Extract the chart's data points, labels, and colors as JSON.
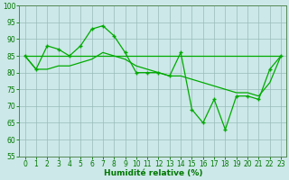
{
  "x": [
    0,
    1,
    2,
    3,
    4,
    5,
    6,
    7,
    8,
    9,
    10,
    11,
    12,
    13,
    14,
    15,
    16,
    17,
    18,
    19,
    20,
    21,
    22,
    23
  ],
  "line_jagged": [
    85,
    81,
    88,
    87,
    85,
    88,
    93,
    94,
    91,
    86,
    80,
    80,
    80,
    79,
    86,
    69,
    65,
    72,
    63,
    73,
    73,
    72,
    81,
    85
  ],
  "line_smooth": [
    85,
    81,
    81,
    82,
    82,
    83,
    84,
    86,
    85,
    84,
    82,
    81,
    80,
    79,
    79,
    78,
    77,
    76,
    75,
    74,
    74,
    73,
    77,
    85
  ],
  "line_flat": [
    85,
    85,
    85,
    85,
    85,
    85,
    85,
    85,
    85,
    85,
    85,
    85,
    85,
    85,
    85,
    85,
    85,
    85,
    85,
    85,
    85,
    85,
    85,
    85
  ],
  "line_color": "#00aa00",
  "bg_color": "#cce8e8",
  "grid_color": "#99bbbb",
  "xlabel": "Humidité relative (%)",
  "ylim": [
    55,
    100
  ],
  "xlim": [
    -0.5,
    23.5
  ],
  "yticks": [
    55,
    60,
    65,
    70,
    75,
    80,
    85,
    90,
    95,
    100
  ],
  "xticks": [
    0,
    1,
    2,
    3,
    4,
    5,
    6,
    7,
    8,
    9,
    10,
    11,
    12,
    13,
    14,
    15,
    16,
    17,
    18,
    19,
    20,
    21,
    22,
    23
  ],
  "tick_fontsize": 5.5,
  "xlabel_fontsize": 6.5
}
